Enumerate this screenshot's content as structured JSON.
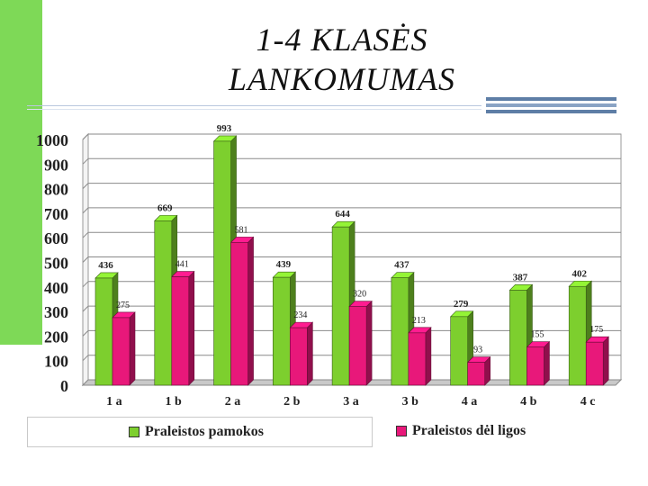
{
  "title": {
    "line1": "1-4 KLASĖS",
    "line2": "LANKOMUMAS"
  },
  "colors": {
    "series1": "#7dcf2e",
    "series2": "#e8187a",
    "accent_green": "#7ed957"
  },
  "chart_data": {
    "type": "bar",
    "categories": [
      "1 a",
      "1 b",
      "2 a",
      "2 b",
      "3 a",
      "3 b",
      "4 a",
      "4 b",
      "4 c"
    ],
    "series": [
      {
        "name": "Praleistos pamokos",
        "values": [
          436,
          669,
          993,
          439,
          644,
          437,
          279,
          387,
          402
        ],
        "color": "#7dcf2e"
      },
      {
        "name": "Praleistos  dėl ligos",
        "values": [
          275,
          441,
          581,
          234,
          320,
          213,
          93,
          155,
          175
        ],
        "color": "#e8187a"
      }
    ],
    "ylim": [
      0,
      1000
    ],
    "yticks": [
      0,
      100,
      200,
      300,
      400,
      500,
      600,
      700,
      800,
      900,
      1000
    ],
    "grid": true,
    "legend_position": "bottom"
  },
  "legend": {
    "item1": "Praleistos pamokos",
    "item2": "Praleistos  dėl ligos"
  }
}
